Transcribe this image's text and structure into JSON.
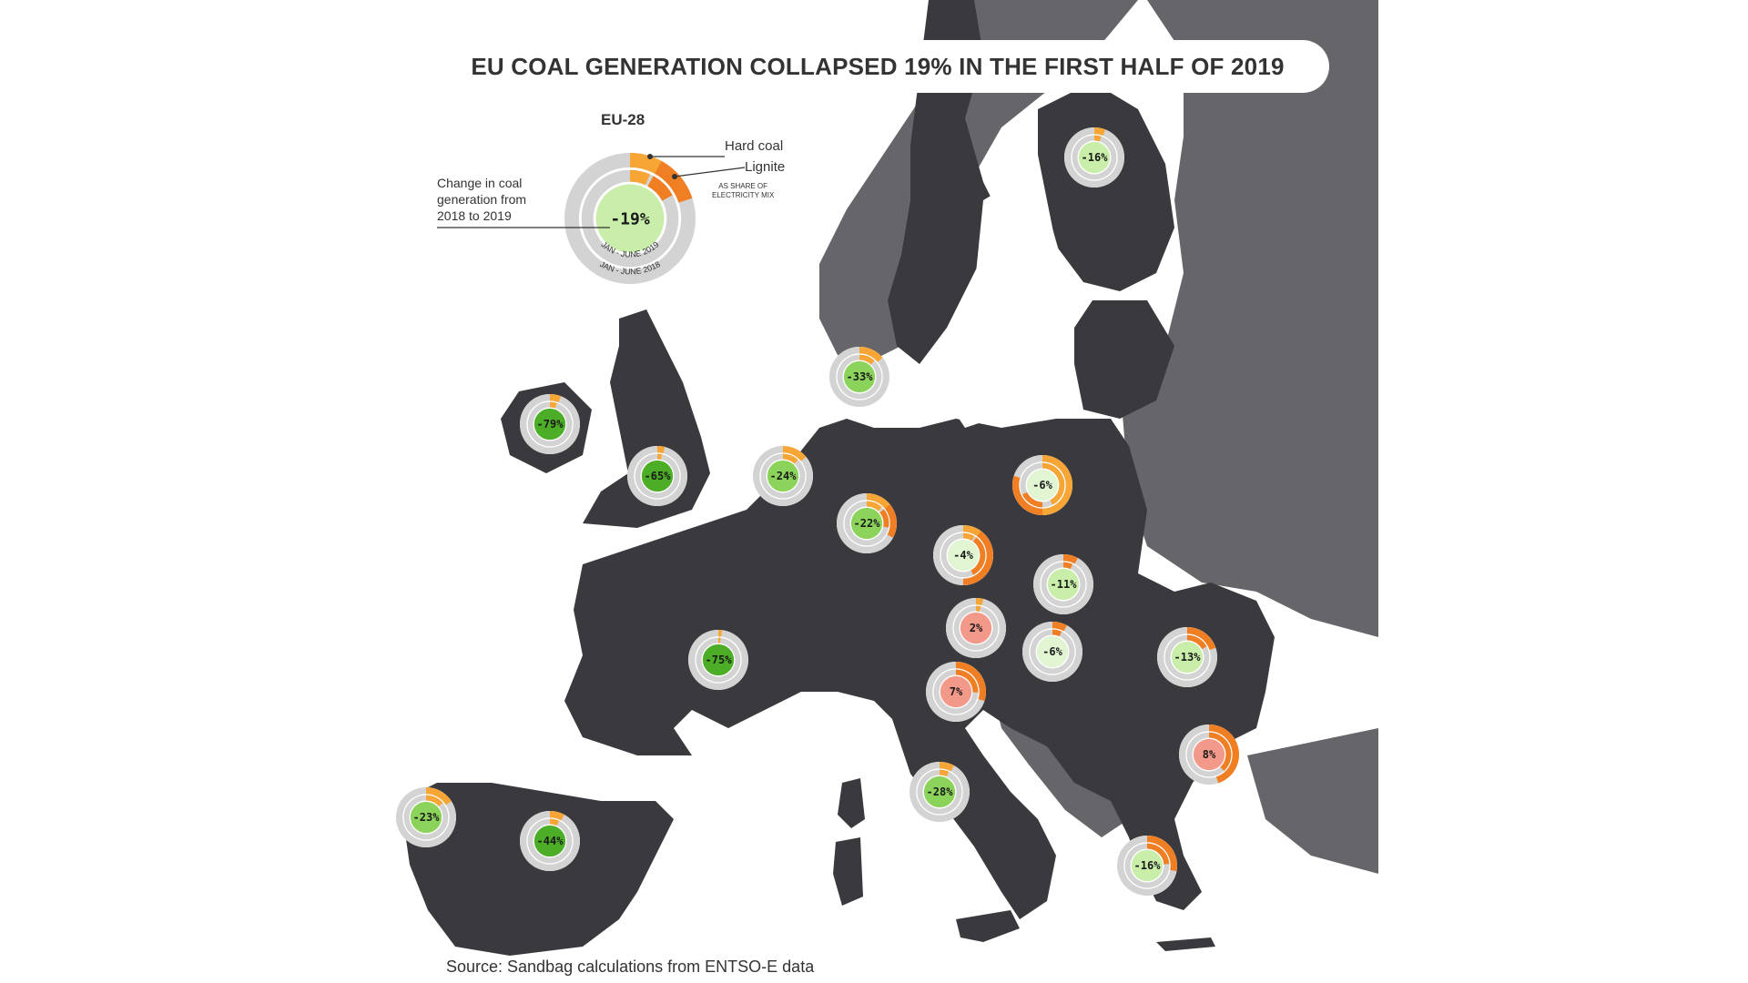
{
  "title": "EU COAL GENERATION COLLAPSED 19% IN THE FIRST HALF OF 2019",
  "source": "Source: Sandbag calculations from ENTSO-E data",
  "legend": {
    "eu_label": "EU-28",
    "eu_value": "-19%",
    "hard_coal_label": "Hard coal",
    "lignite_label": "Lignite",
    "share_note_line1": "AS SHARE OF",
    "share_note_line2": "ELECTRICITY MIX",
    "change_line1": "Change in coal",
    "change_line2": "generation from",
    "change_line3": "2018 to 2019",
    "inner_ring_label": "JAN - JUNE 2019",
    "outer_ring_label": "JAN - JUNE 2018"
  },
  "colors": {
    "sea": "#ffffff",
    "eu_land": "#3a393e",
    "non_eu_land": "#65656a",
    "ring_bg": "#d3d3d3",
    "hard_coal": "#f7a535",
    "lignite": "#f07f23",
    "dark_green": "#4cad26",
    "mid_green": "#8cd35c",
    "light_green": "#c8eeaa",
    "pale_green": "#e2f5d3",
    "increase": "#f3998a"
  },
  "countries": [
    {
      "name": "Finland",
      "value": "-16%",
      "change": -16,
      "fill": "light_green"
    },
    {
      "name": "Denmark",
      "value": "-33%",
      "change": -33,
      "fill": "mid_green"
    },
    {
      "name": "Ireland",
      "value": "-79%",
      "change": -79,
      "fill": "dark_green"
    },
    {
      "name": "United Kingdom",
      "value": "-65%",
      "change": -65,
      "fill": "dark_green"
    },
    {
      "name": "Netherlands",
      "value": "-24%",
      "change": -24,
      "fill": "mid_green"
    },
    {
      "name": "Germany",
      "value": "-22%",
      "change": -22,
      "fill": "mid_green"
    },
    {
      "name": "Poland",
      "value": "-6%",
      "change": -6,
      "fill": "pale_green"
    },
    {
      "name": "Czechia",
      "value": "-4%",
      "change": -4,
      "fill": "pale_green"
    },
    {
      "name": "Slovakia",
      "value": "-11%",
      "change": -11,
      "fill": "light_green"
    },
    {
      "name": "Austria",
      "value": "2%",
      "change": 2,
      "fill": "increase"
    },
    {
      "name": "Hungary",
      "value": "-6%",
      "change": -6,
      "fill": "pale_green"
    },
    {
      "name": "Romania",
      "value": "-13%",
      "change": -13,
      "fill": "light_green"
    },
    {
      "name": "France",
      "value": "-75%",
      "change": -75,
      "fill": "dark_green"
    },
    {
      "name": "Slovenia",
      "value": "7%",
      "change": 7,
      "fill": "increase"
    },
    {
      "name": "Bulgaria",
      "value": "8%",
      "change": 8,
      "fill": "increase"
    },
    {
      "name": "Italy",
      "value": "-28%",
      "change": -28,
      "fill": "mid_green"
    },
    {
      "name": "Portugal",
      "value": "-23%",
      "change": -23,
      "fill": "mid_green"
    },
    {
      "name": "Spain",
      "value": "-44%",
      "change": -44,
      "fill": "dark_green"
    },
    {
      "name": "Greece",
      "value": "-16%",
      "change": -16,
      "fill": "light_green"
    }
  ]
}
